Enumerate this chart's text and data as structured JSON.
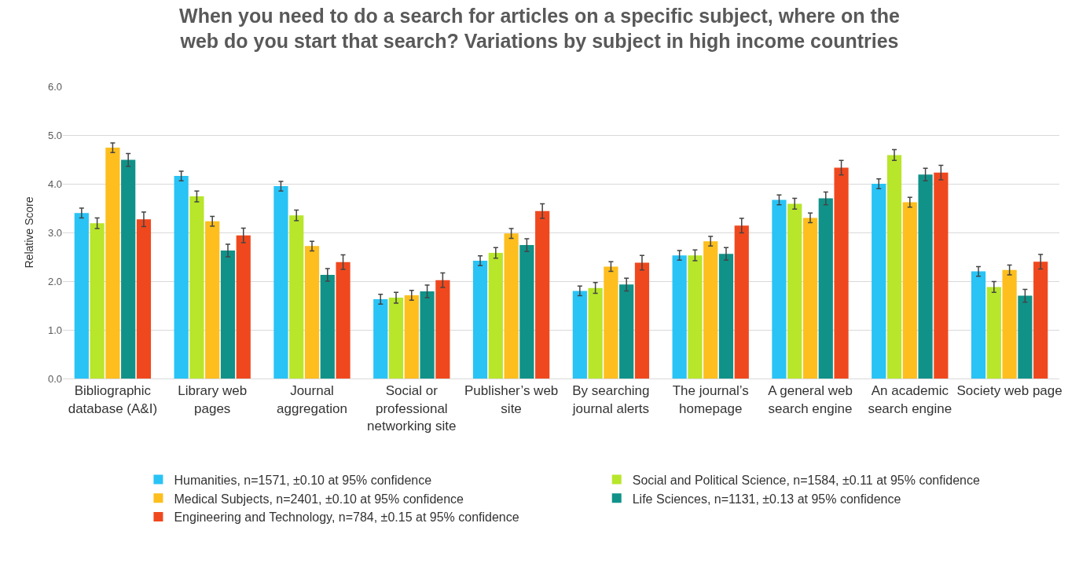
{
  "chart_data": {
    "type": "bar",
    "title": "When you need to do a search for articles on a specific subject, where on the web do you start that search? Variations by subject in high income countries",
    "ylabel": "Relative Score",
    "categories": [
      "Bibliographic database (A&I)",
      "Library web pages",
      "Journal aggregation",
      "Social or professional networking site",
      "Publisher’s web site",
      "By searching journal alerts",
      "The journal’s homepage",
      "A general web search engine",
      "An academic search engine",
      "Society web page"
    ],
    "series": [
      {
        "name": "Humanities, n=1571, ±0.10 at 95% confidence",
        "color": "#29c3f5",
        "values": [
          3.4,
          4.16,
          3.95,
          1.63,
          2.42,
          1.8,
          2.53,
          3.67,
          4.0,
          2.2
        ],
        "errors": [
          0.1,
          0.1,
          0.1,
          0.1,
          0.1,
          0.1,
          0.1,
          0.1,
          0.1,
          0.1
        ]
      },
      {
        "name": "Social and Political Science, n=1584, ±0.11 at 95% confidence",
        "color": "#b8e62a",
        "values": [
          3.19,
          3.74,
          3.35,
          1.66,
          2.58,
          1.86,
          2.53,
          3.59,
          4.59,
          1.88
        ],
        "errors": [
          0.11,
          0.11,
          0.11,
          0.11,
          0.11,
          0.11,
          0.11,
          0.11,
          0.11,
          0.11
        ]
      },
      {
        "name": "Medical Subjects, n=2401, ±0.10 at 95% confidence",
        "color": "#fdbe1e",
        "values": [
          4.74,
          3.23,
          2.72,
          1.71,
          2.98,
          2.3,
          2.82,
          3.3,
          3.62,
          2.23
        ],
        "errors": [
          0.1,
          0.1,
          0.1,
          0.1,
          0.1,
          0.1,
          0.1,
          0.1,
          0.1,
          0.1
        ]
      },
      {
        "name": "Life Sciences, n=1131, ±0.13 at 95% confidence",
        "color": "#109289",
        "values": [
          4.49,
          2.63,
          2.13,
          1.79,
          2.74,
          1.93,
          2.56,
          3.7,
          4.19,
          1.7
        ],
        "errors": [
          0.13,
          0.13,
          0.13,
          0.13,
          0.13,
          0.13,
          0.13,
          0.13,
          0.13,
          0.13
        ]
      },
      {
        "name": "Engineering and Technology, n=784, ±0.15 at 95% confidence",
        "color": "#f0481e",
        "values": [
          3.27,
          2.94,
          2.39,
          2.02,
          3.44,
          2.38,
          3.14,
          4.33,
          4.23,
          2.4
        ],
        "errors": [
          0.15,
          0.15,
          0.15,
          0.15,
          0.15,
          0.15,
          0.15,
          0.15,
          0.15,
          0.15
        ]
      }
    ],
    "ylim": [
      0,
      6
    ],
    "yticks": [
      {
        "value": 0,
        "label": "0.0"
      },
      {
        "value": 1,
        "label": "1.0"
      },
      {
        "value": 2,
        "label": "2.0"
      },
      {
        "value": 3,
        "label": "3.0"
      },
      {
        "value": 4,
        "label": "4.0"
      },
      {
        "value": 5,
        "label": "5.0"
      },
      {
        "value": 6,
        "label": "6.0"
      }
    ],
    "grid": "y",
    "legend": "bottom"
  }
}
